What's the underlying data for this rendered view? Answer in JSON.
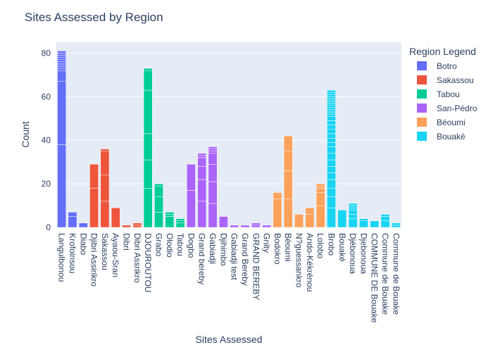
{
  "chart_data": {
    "type": "bar",
    "title": "Sites Assessed by Region",
    "xlabel": "Sites Assessed",
    "ylabel": "Count",
    "ylim": [
      0,
      85
    ],
    "yticks": [
      0,
      20,
      40,
      60,
      80
    ],
    "grid": true,
    "stacked": true,
    "legend": {
      "title": "Region Legend",
      "placement": "right"
    },
    "series": [
      {
        "name": "Botro",
        "color": "#636efa",
        "points": [
          {
            "x": "Langulbonou",
            "stack": [
              38,
              29,
              5,
              1,
              1,
              1,
              1,
              1,
              1,
              1,
              1,
              1
            ]
          },
          {
            "x": "Krofoinsou",
            "stack": [
              5,
              2
            ]
          },
          {
            "x": "Diabo",
            "stack": [
              2
            ]
          }
        ]
      },
      {
        "name": "Sakassou",
        "color": "#ef553b",
        "points": [
          {
            "x": "Djibri Assirikro",
            "stack": [
              18,
              11
            ]
          },
          {
            "x": "Sakassou",
            "stack": [
              12,
              12,
              11,
              1
            ]
          },
          {
            "x": "Ayaou-Sran",
            "stack": [
              9
            ]
          },
          {
            "x": "Dibri",
            "stack": [
              1
            ]
          },
          {
            "x": "Dibri Assrikro",
            "stack": [
              1,
              1
            ]
          }
        ]
      },
      {
        "name": "Tabou",
        "color": "#00cc96",
        "points": [
          {
            "x": "DJOUROUTOU",
            "stack": [
              18,
              13,
              12,
              20,
              9,
              1
            ]
          },
          {
            "x": "Grabo",
            "stack": [
              7,
              7,
              5,
              1
            ]
          },
          {
            "x": "Olodio",
            "stack": [
              5,
              1,
              1
            ]
          },
          {
            "x": "Tabou",
            "stack": [
              2,
              1,
              1
            ]
          }
        ]
      },
      {
        "name": "San-Pédro",
        "color": "#ab63fa",
        "points": [
          {
            "x": "Dogbo",
            "stack": [
              17,
              12
            ]
          },
          {
            "x": "Grand bereby",
            "stack": [
              12,
              10,
              6,
              4,
              1,
              1
            ]
          },
          {
            "x": "Gabiadji",
            "stack": [
              11,
              10,
              8,
              5,
              1,
              1,
              1
            ]
          },
          {
            "x": "Djihimbo",
            "stack": [
              5
            ]
          },
          {
            "x": "Gabiadji test",
            "stack": [
              1
            ]
          },
          {
            "x": "Grand Bereby",
            "stack": [
              1
            ]
          },
          {
            "x": "GRAND BEREBY",
            "stack": [
              1,
              1
            ]
          },
          {
            "x": "Gnity",
            "stack": [
              1
            ]
          }
        ]
      },
      {
        "name": "Béoumi",
        "color": "#ffa15a",
        "points": [
          {
            "x": "Bodokro",
            "stack": [
              13,
              3
            ]
          },
          {
            "x": "Béoumi",
            "stack": [
              13,
              13,
              9,
              7
            ]
          },
          {
            "x": "N?guessankro",
            "stack": [
              6
            ]
          },
          {
            "x": "Ando-Kékrénou",
            "stack": [
              6,
              3
            ]
          },
          {
            "x": "Lolobo",
            "stack": [
              10,
              6,
              2,
              1,
              1
            ]
          }
        ]
      },
      {
        "name": "Bouaké",
        "color": "#19d3f3",
        "points": [
          {
            "x": "Brobo",
            "stack": [
              9,
              5,
              4,
              4,
              3,
              3,
              3,
              3,
              3,
              2,
              2,
              2,
              2,
              2,
              2,
              2,
              1,
              1,
              1,
              1,
              1,
              1,
              1,
              1,
              1,
              1,
              1,
              1
            ]
          },
          {
            "x": "Bouaké",
            "stack": [
              8
            ]
          },
          {
            "x": "Djébonoua",
            "stack": [
              4,
              2,
              2,
              1,
              1,
              1
            ]
          },
          {
            "x": "Djebonoua",
            "stack": [
              3,
              1
            ]
          },
          {
            "x": "COMMUNE DE Bouake",
            "stack": [
              3
            ]
          },
          {
            "x": "Commune de Bouake",
            "stack": [
              3,
              2,
              1
            ]
          },
          {
            "x": "Commune de Bouake",
            "stack": [
              1,
              1
            ]
          }
        ]
      }
    ]
  }
}
